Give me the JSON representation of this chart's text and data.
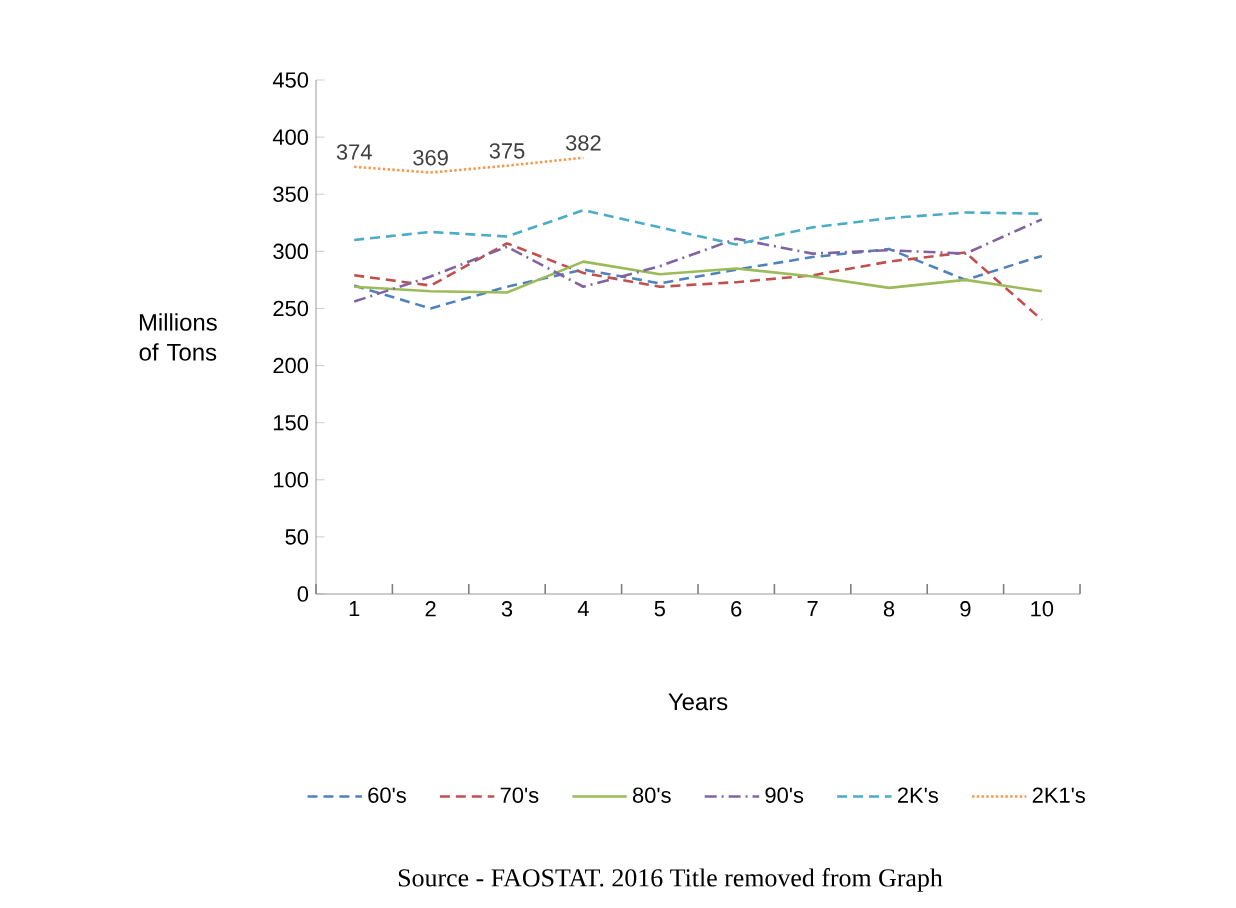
{
  "chart_data": {
    "type": "line",
    "xlabel": "Years",
    "ylabel": "Millions of Tons",
    "categories": [
      "1",
      "2",
      "3",
      "4",
      "5",
      "6",
      "7",
      "8",
      "9",
      "10"
    ],
    "ylim": [
      0,
      450
    ],
    "yticks": [
      0,
      50,
      100,
      150,
      200,
      250,
      300,
      350,
      400,
      450
    ],
    "legend": "bottom",
    "grid": false,
    "marker": "none",
    "series": [
      {
        "name": "60's",
        "color": "#4f81bd",
        "line_style": "dashed",
        "values": [
          270,
          250,
          269,
          284,
          272,
          284,
          295,
          302,
          275,
          296
        ]
      },
      {
        "name": "70's",
        "color": "#c0504d",
        "line_style": "dashed",
        "values": [
          279,
          270,
          307,
          281,
          269,
          273,
          279,
          291,
          299,
          240
        ]
      },
      {
        "name": "80's",
        "color": "#9bbb59",
        "line_style": "solid",
        "values": [
          269,
          265,
          264,
          291,
          280,
          285,
          278,
          268,
          275,
          265
        ]
      },
      {
        "name": "90's",
        "color": "#8064a2",
        "line_style": "dashdot",
        "values": [
          256,
          278,
          304,
          269,
          287,
          311,
          298,
          301,
          298,
          328
        ]
      },
      {
        "name": "2K's",
        "color": "#4bacc6",
        "line_style": "dashed",
        "values": [
          310,
          317,
          313,
          336,
          321,
          306,
          321,
          329,
          334,
          333
        ]
      },
      {
        "name": "2K1's",
        "color": "#f79646",
        "line_style": "dotted",
        "values": [
          374,
          369,
          375,
          382,
          null,
          null,
          null,
          null,
          null,
          null
        ],
        "value_labels": [
          "374",
          "369",
          "375",
          "382",
          null,
          null,
          null,
          null,
          null,
          null
        ]
      }
    ],
    "annotations": [
      "Source - FAOSTAT. 2016 Title removed from Graph"
    ]
  }
}
